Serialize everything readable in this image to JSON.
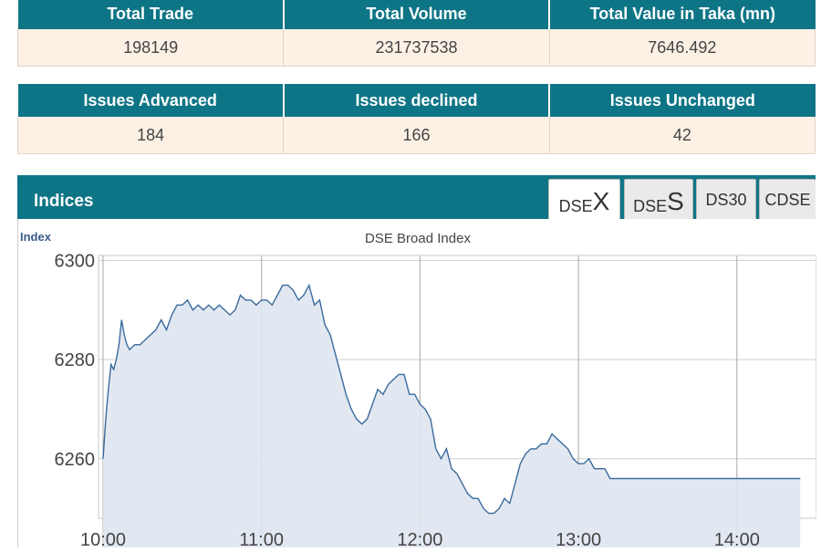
{
  "summary_top": {
    "headers": [
      "Total Trade",
      "Total Volume",
      "Total Value in Taka (mn)"
    ],
    "values": [
      "198149",
      "231737538",
      "7646.492"
    ]
  },
  "summary_issues": {
    "headers": [
      "Issues Advanced",
      "Issues declined",
      "Issues Unchanged"
    ],
    "values": [
      "184",
      "166",
      "42"
    ]
  },
  "indices": {
    "title": "Indices",
    "tabs": [
      {
        "prefix": "DSE",
        "suffix": "X",
        "active": true
      },
      {
        "prefix": "DSE",
        "suffix": "S",
        "active": false
      },
      {
        "prefix": "DS30",
        "suffix": "",
        "active": false
      },
      {
        "prefix": "CDSE",
        "suffix": "",
        "active": false
      }
    ]
  },
  "colors": {
    "header_bg": "#0e7586",
    "cell_bg": "#fdf1e6",
    "line": "#3a6a9e",
    "area": "#dfe6f0"
  },
  "chart_data": {
    "type": "area",
    "title": "DSE Broad Index",
    "ylabel": "Index",
    "xlabel": "",
    "ylim": [
      6248,
      6301
    ],
    "yticks": [
      6300,
      6280,
      6260
    ],
    "xticks": [
      "10:00",
      "11:00",
      "12:00",
      "13:00",
      "14:00"
    ],
    "x_unit": "minutes after 10:00",
    "grid": true,
    "series": [
      {
        "x": [
          0,
          1,
          2,
          3,
          4,
          5,
          6,
          7,
          8,
          9,
          10,
          12,
          14,
          16,
          18,
          20,
          22,
          24,
          26,
          28,
          30,
          32,
          34,
          36,
          38,
          40,
          42,
          44,
          46,
          48,
          50,
          52,
          54,
          56,
          58,
          60,
          62,
          64,
          66,
          68,
          70,
          72,
          74,
          76,
          78,
          80,
          82,
          84,
          86,
          88,
          90,
          92,
          94,
          96,
          98,
          100,
          102,
          104,
          106,
          108,
          110,
          112,
          114,
          116,
          118,
          120,
          122,
          124,
          126,
          128,
          130,
          132,
          134,
          136,
          138,
          140,
          142,
          144,
          146,
          148,
          150,
          152,
          154,
          156,
          158,
          160,
          162,
          164,
          166,
          168,
          170,
          172,
          174,
          176,
          178,
          180,
          182,
          184,
          186,
          188,
          190,
          192,
          194,
          196,
          198,
          200,
          202,
          204,
          206,
          208,
          210,
          212,
          214,
          216,
          218,
          220,
          222,
          224,
          226,
          228,
          230,
          232,
          234,
          236,
          238,
          240,
          242,
          244,
          246,
          248,
          250,
          252,
          254,
          260,
          264
        ],
        "y": [
          6260,
          6268,
          6274,
          6279,
          6278,
          6280,
          6283,
          6288,
          6285,
          6283,
          6282,
          6283,
          6283,
          6284,
          6285,
          6286,
          6288,
          6286,
          6289,
          6291,
          6291,
          6292,
          6290,
          6291,
          6290,
          6291,
          6290,
          6291,
          6290,
          6289,
          6290,
          6293,
          6292,
          6292,
          6291,
          6292,
          6292,
          6291,
          6293,
          6295,
          6295,
          6294,
          6292,
          6293,
          6295,
          6291,
          6292,
          6287,
          6285,
          6281,
          6277,
          6273,
          6270,
          6268,
          6267,
          6268,
          6271,
          6274,
          6273,
          6275,
          6276,
          6277,
          6277,
          6273,
          6273,
          6271,
          6270,
          6268,
          6262,
          6260,
          6262,
          6258,
          6257,
          6255,
          6253,
          6252,
          6252,
          6250,
          6249,
          6249,
          6250,
          6252,
          6251,
          6255,
          6259,
          6261,
          6262,
          6262,
          6263,
          6263,
          6265,
          6264,
          6263,
          6262,
          6260,
          6259,
          6259,
          6260,
          6258,
          6258,
          6258,
          6256,
          6256,
          6256,
          6256,
          6256,
          6256,
          6256,
          6256,
          6256,
          6256,
          6256,
          6256,
          6256,
          6256,
          6256,
          6256,
          6256,
          6256,
          6256,
          6256,
          6256,
          6256,
          6256,
          6256,
          6256,
          6256,
          6256,
          6256,
          6256,
          6256,
          6256,
          6256,
          6256,
          6256
        ]
      }
    ]
  }
}
